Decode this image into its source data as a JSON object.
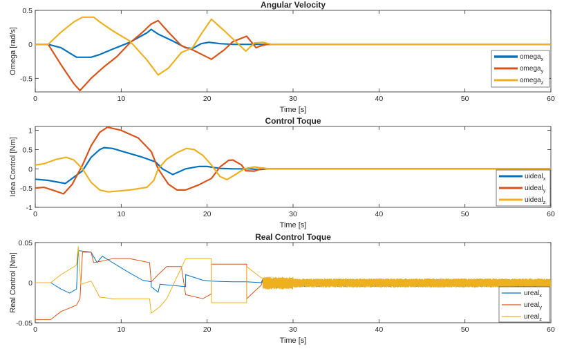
{
  "chart_data": [
    {
      "type": "line",
      "title": "Angular Velocity",
      "xlabel": "Time [s]",
      "ylabel": "Omega [rad/s]",
      "xlim": [
        0,
        60
      ],
      "ylim": [
        -0.7,
        0.5
      ],
      "xticks": [
        0,
        10,
        20,
        30,
        40,
        50,
        60
      ],
      "yticks": [
        -0.5,
        0,
        0.5
      ],
      "legend_position": "right",
      "series": [
        {
          "name": "omega",
          "sub": "x",
          "color": "#0072BD",
          "points": [
            [
              0,
              0
            ],
            [
              1.5,
              0
            ],
            [
              3,
              -0.05
            ],
            [
              4.8,
              -0.19
            ],
            [
              6.5,
              -0.19
            ],
            [
              7.5,
              -0.15
            ],
            [
              9,
              -0.07
            ],
            [
              11,
              0.03
            ],
            [
              13,
              0.17
            ],
            [
              13.5,
              0.22
            ],
            [
              14.3,
              0.15
            ],
            [
              16,
              0.05
            ],
            [
              17.5,
              -0.05
            ],
            [
              18.3,
              -0.06
            ],
            [
              19.3,
              0.01
            ],
            [
              20.2,
              0.03
            ],
            [
              21.5,
              0.01
            ],
            [
              23,
              0
            ],
            [
              25,
              0
            ],
            [
              27,
              0
            ],
            [
              60,
              0
            ]
          ]
        },
        {
          "name": "omega",
          "sub": "y",
          "color": "#D95319",
          "points": [
            [
              0,
              0
            ],
            [
              1.5,
              0
            ],
            [
              3,
              -0.3
            ],
            [
              4.5,
              -0.58
            ],
            [
              5.2,
              -0.68
            ],
            [
              6.5,
              -0.5
            ],
            [
              8,
              -0.33
            ],
            [
              9.5,
              -0.18
            ],
            [
              11,
              0.02
            ],
            [
              12.5,
              0.18
            ],
            [
              13.5,
              0.3
            ],
            [
              14.3,
              0.35
            ],
            [
              15.5,
              0.18
            ],
            [
              17,
              -0.02
            ],
            [
              18.3,
              -0.08
            ],
            [
              20.5,
              -0.22
            ],
            [
              22,
              -0.08
            ],
            [
              23,
              0.04
            ],
            [
              24.6,
              0.12
            ],
            [
              25.7,
              -0.05
            ],
            [
              26.3,
              -0.02
            ],
            [
              27,
              0
            ],
            [
              28,
              0
            ],
            [
              60,
              0
            ]
          ]
        },
        {
          "name": "omega",
          "sub": "z",
          "color": "#EDB120",
          "points": [
            [
              0,
              0
            ],
            [
              1.5,
              0
            ],
            [
              3,
              0.18
            ],
            [
              4.5,
              0.33
            ],
            [
              5.5,
              0.4
            ],
            [
              6.8,
              0.4
            ],
            [
              7.5,
              0.33
            ],
            [
              9,
              0.2
            ],
            [
              11,
              0.05
            ],
            [
              13,
              -0.23
            ],
            [
              14.3,
              -0.45
            ],
            [
              15.5,
              -0.35
            ],
            [
              17,
              -0.12
            ],
            [
              18.3,
              -0.05
            ],
            [
              19.3,
              0.15
            ],
            [
              20.5,
              0.37
            ],
            [
              22,
              0.2
            ],
            [
              23.5,
              0.02
            ],
            [
              24.5,
              -0.1
            ],
            [
              25.5,
              0.02
            ],
            [
              26.5,
              0.03
            ],
            [
              27.5,
              0
            ],
            [
              60,
              0
            ]
          ]
        }
      ]
    },
    {
      "type": "line",
      "title": "Control Toque",
      "xlabel": "Time [s]",
      "ylabel": "Idea Control [Nm]",
      "xlim": [
        0,
        60
      ],
      "ylim": [
        -1,
        1.1
      ],
      "xticks": [
        0,
        10,
        20,
        30,
        40,
        50,
        60
      ],
      "yticks": [
        -1,
        -0.5,
        0,
        0.5,
        1
      ],
      "legend_position": "right",
      "series": [
        {
          "name": "uideal",
          "sub": "x",
          "color": "#0072BD",
          "points": [
            [
              0,
              -0.27
            ],
            [
              1.5,
              -0.3
            ],
            [
              3.5,
              -0.38
            ],
            [
              5.5,
              -0.05
            ],
            [
              6.5,
              0.3
            ],
            [
              7.5,
              0.5
            ],
            [
              8,
              0.55
            ],
            [
              9,
              0.53
            ],
            [
              10.5,
              0.43
            ],
            [
              12.5,
              0.3
            ],
            [
              14,
              0.18
            ],
            [
              14.8,
              0
            ],
            [
              16,
              -0.15
            ],
            [
              17.5,
              0
            ],
            [
              19,
              0.06
            ],
            [
              20,
              0.06
            ],
            [
              21.5,
              0.01
            ],
            [
              23,
              0
            ],
            [
              25,
              0
            ],
            [
              26,
              -0.02
            ],
            [
              27,
              0
            ],
            [
              60,
              0
            ]
          ]
        },
        {
          "name": "uideal",
          "sub": "y",
          "color": "#D95319",
          "points": [
            [
              0,
              -0.5
            ],
            [
              1,
              -0.48
            ],
            [
              2,
              -0.55
            ],
            [
              3.3,
              -0.65
            ],
            [
              4.3,
              -0.4
            ],
            [
              5.5,
              0.1
            ],
            [
              6.5,
              0.6
            ],
            [
              7.5,
              0.95
            ],
            [
              8.4,
              1.08
            ],
            [
              10,
              1
            ],
            [
              12,
              0.8
            ],
            [
              13.5,
              0.45
            ],
            [
              14.3,
              0
            ],
            [
              15.5,
              -0.4
            ],
            [
              16.5,
              -0.55
            ],
            [
              17.5,
              -0.55
            ],
            [
              19,
              -0.42
            ],
            [
              20.5,
              -0.25
            ],
            [
              21.5,
              0.05
            ],
            [
              22.5,
              0.22
            ],
            [
              23,
              0.23
            ],
            [
              24,
              0.1
            ],
            [
              24.5,
              -0.05
            ],
            [
              25.5,
              -0.06
            ],
            [
              26.5,
              0.02
            ],
            [
              27,
              0
            ],
            [
              60,
              0
            ]
          ]
        },
        {
          "name": "uideal",
          "sub": "z",
          "color": "#EDB120",
          "points": [
            [
              0,
              0.1
            ],
            [
              1,
              0.13
            ],
            [
              2.5,
              0.25
            ],
            [
              3.6,
              0.3
            ],
            [
              4.5,
              0.23
            ],
            [
              5.5,
              0
            ],
            [
              6.5,
              -0.35
            ],
            [
              7.5,
              -0.55
            ],
            [
              8.5,
              -0.6
            ],
            [
              11,
              -0.55
            ],
            [
              13,
              -0.48
            ],
            [
              13.8,
              -0.3
            ],
            [
              14.3,
              0
            ],
            [
              15.3,
              0.25
            ],
            [
              16.5,
              0.42
            ],
            [
              17.6,
              0.53
            ],
            [
              18.5,
              0.5
            ],
            [
              19.5,
              0.35
            ],
            [
              20.5,
              0.1
            ],
            [
              21.5,
              -0.2
            ],
            [
              22.3,
              -0.28
            ],
            [
              23.3,
              -0.15
            ],
            [
              24.3,
              0
            ],
            [
              25.5,
              0.05
            ],
            [
              27,
              0
            ],
            [
              60,
              0
            ]
          ]
        }
      ]
    },
    {
      "type": "line",
      "title": "Real Control Toque",
      "xlabel": "Time [s]",
      "ylabel": "Real Control [Nm]",
      "xlim": [
        0,
        60
      ],
      "ylim": [
        -0.05,
        0.05
      ],
      "xticks": [
        0,
        10,
        20,
        30,
        40,
        50,
        60
      ],
      "yticks": [
        -0.05,
        0,
        0.05
      ],
      "legend_position": "right",
      "series": [
        {
          "name": "ureal",
          "sub": "x",
          "color": "#0072BD",
          "points": [
            [
              0,
              0
            ],
            [
              1.8,
              0
            ],
            [
              3,
              -0.008
            ],
            [
              4,
              -0.013
            ],
            [
              4.8,
              -0.008
            ],
            [
              5,
              0.04
            ],
            [
              6.5,
              0.038
            ],
            [
              7.2,
              0.025
            ],
            [
              7.8,
              0.033
            ],
            [
              9,
              0.025
            ],
            [
              11,
              0.012
            ],
            [
              12.5,
              0.003
            ],
            [
              13.5,
              0.001
            ],
            [
              13.5,
              -0.005
            ],
            [
              14.3,
              -0.012
            ],
            [
              14.5,
              -0.002
            ],
            [
              16.5,
              -0.004
            ],
            [
              17.5,
              -0.005
            ],
            [
              17.5,
              0.01
            ],
            [
              19.5,
              0.003
            ],
            [
              20.5,
              0.002
            ],
            [
              21.5,
              0.0015
            ],
            [
              23,
              0.001
            ],
            [
              24.6,
              0.001
            ],
            [
              26.3,
              0
            ],
            [
              27,
              -0.004
            ],
            [
              60,
              0
            ]
          ],
          "noise": {
            "from": 26.5,
            "to": 60,
            "lo": -0.005,
            "hi": 0.004
          }
        },
        {
          "name": "ureal",
          "sub": "y",
          "color": "#D95319",
          "points": [
            [
              0,
              -0.046
            ],
            [
              1.8,
              -0.046
            ],
            [
              3,
              -0.036
            ],
            [
              4.8,
              -0.028
            ],
            [
              5.2,
              -0.02
            ],
            [
              5.5,
              0.038
            ],
            [
              6.5,
              0.038
            ],
            [
              6.8,
              0.025
            ],
            [
              7.8,
              0.027
            ],
            [
              9,
              0.03
            ],
            [
              11,
              0.03
            ],
            [
              13.3,
              0.025
            ],
            [
              13.5,
              0.001
            ],
            [
              14.3,
              0.01
            ],
            [
              15.3,
              0.02
            ],
            [
              17,
              0.02
            ],
            [
              17.5,
              -0.015
            ],
            [
              19.5,
              -0.02
            ],
            [
              20.5,
              -0.014
            ],
            [
              20.5,
              0.023
            ],
            [
              24.6,
              0.023
            ],
            [
              24.6,
              -0.02
            ],
            [
              26.3,
              -0.003
            ],
            [
              27,
              0
            ],
            [
              60,
              0
            ]
          ],
          "noise": {
            "from": 26.5,
            "to": 60,
            "lo": -0.003,
            "hi": 0.003
          }
        },
        {
          "name": "ureal",
          "sub": "z",
          "color": "#EDB120",
          "points": [
            [
              0,
              0
            ],
            [
              1.8,
              0
            ],
            [
              3,
              0.01
            ],
            [
              4.8,
              0.022
            ],
            [
              5,
              0.045
            ],
            [
              5.3,
              -0.002
            ],
            [
              6.5,
              0.002
            ],
            [
              7.5,
              -0.018
            ],
            [
              9,
              -0.02
            ],
            [
              11,
              -0.02
            ],
            [
              13.3,
              -0.02
            ],
            [
              13.5,
              -0.038
            ],
            [
              14.5,
              -0.03
            ],
            [
              15.3,
              -0.02
            ],
            [
              17.5,
              0.03
            ],
            [
              19.5,
              0.03
            ],
            [
              20.5,
              0.03
            ],
            [
              20.5,
              -0.025
            ],
            [
              24.6,
              -0.025
            ],
            [
              24.6,
              0.02
            ],
            [
              26.3,
              0.006
            ],
            [
              27,
              0
            ],
            [
              60,
              0
            ]
          ],
          "noise": {
            "from": 26.5,
            "to": 60,
            "lo": -0.006,
            "hi": 0.005
          }
        }
      ]
    }
  ]
}
